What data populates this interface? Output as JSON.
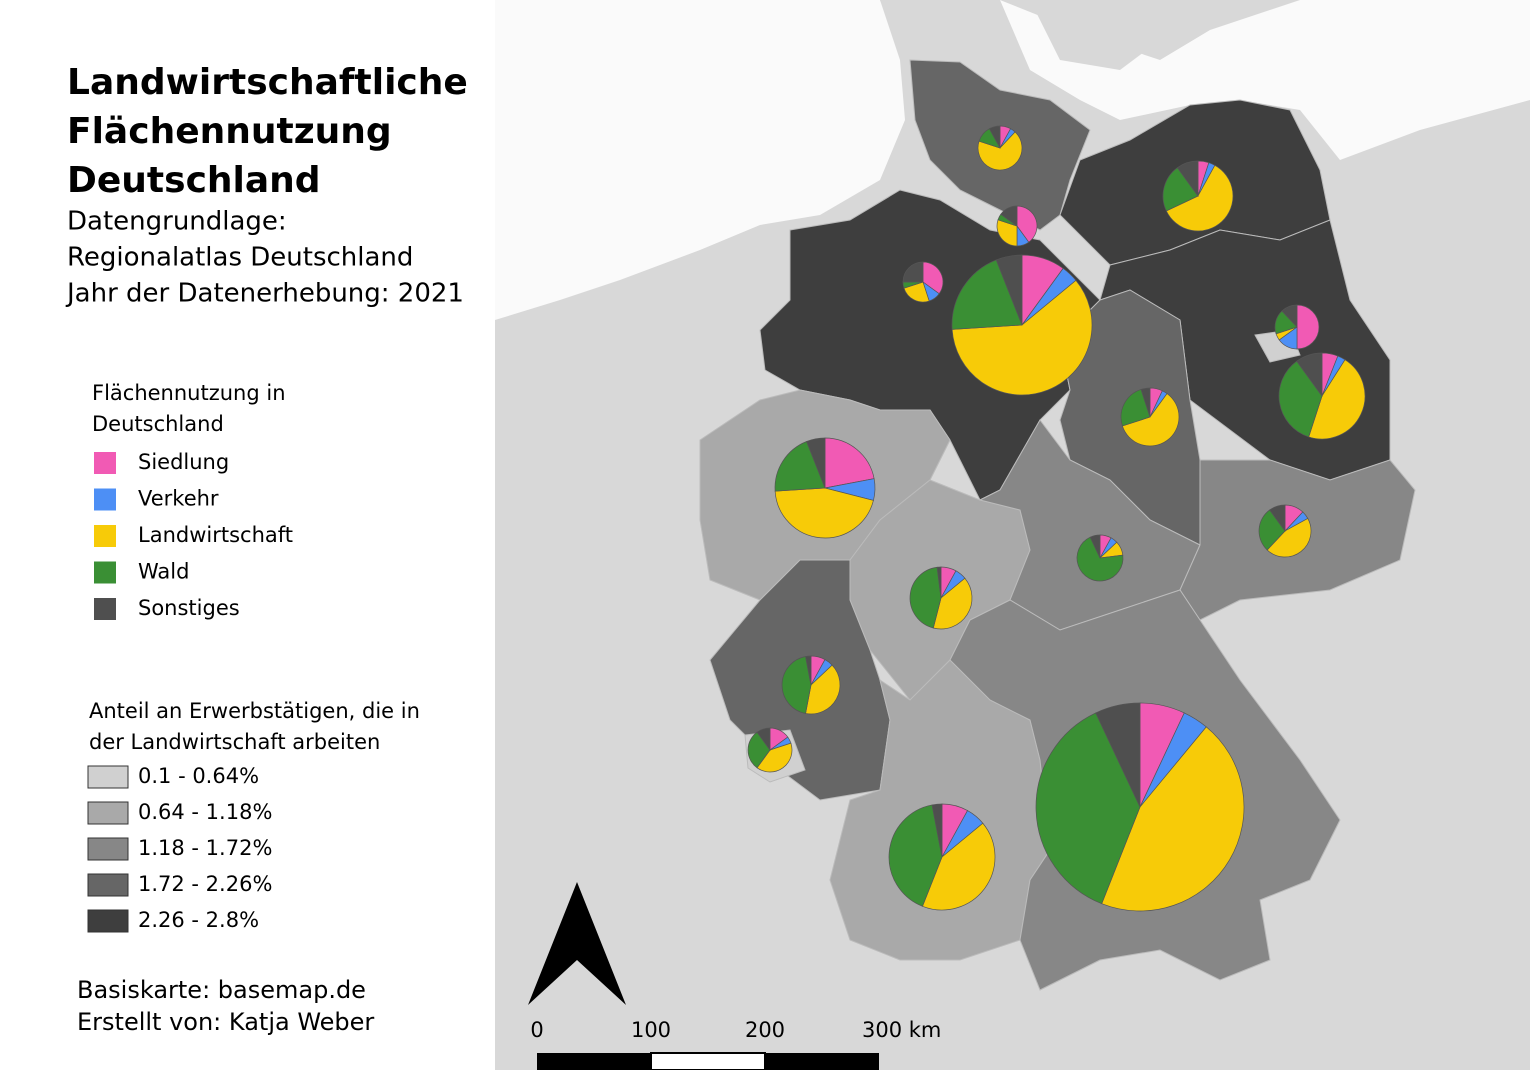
{
  "title": [
    "Landwirtschaftliche",
    "Flächennutzung",
    "Deutschland"
  ],
  "subtitle": [
    "Datengrundlage:",
    "Regionalatlas Deutschland",
    "Jahr der Datenerhebung: 2021"
  ],
  "legend_landuse": {
    "title": [
      "Flächennutzung in",
      "Deutschland"
    ],
    "items": [
      {
        "label": "Siedlung",
        "color": "#f15ab4"
      },
      {
        "label": "Verkehr",
        "color": "#4d8ff5"
      },
      {
        "label": "Landwirtschaft",
        "color": "#f7cb08"
      },
      {
        "label": "Wald",
        "color": "#3a8f34"
      },
      {
        "label": "Sonstiges",
        "color": "#4f4f4f"
      }
    ]
  },
  "legend_classes": {
    "title": [
      "Anteil an Erwerbstätigen, die in",
      "der Landwirtschaft arbeiten"
    ],
    "items": [
      {
        "label": "0.1 - 0.64%",
        "color": "#d0d0d0"
      },
      {
        "label": "0.64 - 1.18%",
        "color": "#a9a9a9"
      },
      {
        "label": "1.18 - 1.72%",
        "color": "#878787"
      },
      {
        "label": "1.72 - 2.26%",
        "color": "#666666"
      },
      {
        "label": "2.26 - 2.8%",
        "color": "#3e3e3e"
      }
    ]
  },
  "credits": [
    "Basiskarte: basemap.de",
    "Erstellt von: Katja Weber"
  ],
  "scale_labels": [
    "0",
    "100",
    "200",
    "300 km"
  ],
  "pies": [
    {
      "values": [
        8,
        4,
        68,
        12,
        8
      ]
    },
    {
      "values": [
        5,
        3,
        60,
        22,
        10
      ]
    },
    {
      "values": [
        40,
        10,
        30,
        5,
        15
      ]
    },
    {
      "values": [
        35,
        10,
        25,
        5,
        25
      ]
    },
    {
      "values": [
        10,
        4,
        60,
        20,
        6
      ]
    },
    {
      "values": [
        50,
        15,
        5,
        18,
        12
      ]
    },
    {
      "values": [
        6,
        3,
        46,
        35,
        10
      ]
    },
    {
      "values": [
        7,
        3,
        60,
        25,
        5
      ]
    },
    {
      "values": [
        22,
        7,
        45,
        20,
        6
      ]
    },
    {
      "values": [
        8,
        5,
        10,
        70,
        7
      ]
    },
    {
      "values": [
        12,
        5,
        45,
        28,
        10
      ]
    },
    {
      "values": [
        8,
        6,
        40,
        44,
        2
      ]
    },
    {
      "values": [
        8,
        5,
        40,
        44,
        3
      ]
    },
    {
      "values": [
        15,
        5,
        40,
        30,
        10
      ]
    },
    {
      "values": [
        8,
        6,
        42,
        41,
        3
      ]
    },
    {
      "values": [
        7,
        4,
        45,
        37,
        7
      ]
    }
  ]
}
